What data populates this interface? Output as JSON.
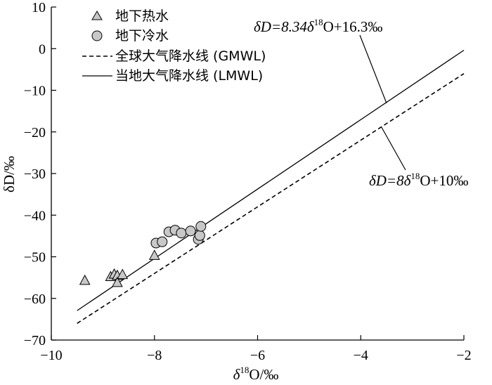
{
  "chart_data": {
    "type": "scatter",
    "title": "",
    "xlabel_symbol": "δ",
    "xlabel_sup": "18",
    "xlabel_rest": "O/‰",
    "ylabel": "δD/‰",
    "xlim": [
      -10,
      -2
    ],
    "ylim": [
      -70,
      10
    ],
    "x_ticks": [
      -10,
      -8,
      -6,
      -4,
      -2
    ],
    "y_ticks": [
      10,
      0,
      -10,
      -20,
      -30,
      -40,
      -50,
      -60,
      -70
    ],
    "x_tick_labels": [
      "−10",
      "−8",
      "−6",
      "−4",
      "−2"
    ],
    "y_tick_labels": [
      "10",
      "0",
      "−10",
      "−20",
      "−30",
      "−40",
      "−50",
      "−60",
      "−70"
    ],
    "legend_position": "top-left",
    "grid": false,
    "series": [
      {
        "name": "地下热水",
        "kind": "scatter",
        "marker": "triangle",
        "color": "#c8c8c8",
        "points": [
          [
            -9.35,
            -55.8
          ],
          [
            -8.85,
            -54.9
          ],
          [
            -8.78,
            -54.3
          ],
          [
            -8.72,
            -54.6
          ],
          [
            -8.72,
            -56.3
          ],
          [
            -8.62,
            -54.4
          ],
          [
            -8.0,
            -49.8
          ]
        ]
      },
      {
        "name": "地下冷水",
        "kind": "scatter",
        "marker": "circle",
        "color": "#c8c8c8",
        "points": [
          [
            -7.97,
            -46.7
          ],
          [
            -7.85,
            -46.4
          ],
          [
            -7.72,
            -44.0
          ],
          [
            -7.6,
            -43.6
          ],
          [
            -7.48,
            -44.3
          ],
          [
            -7.3,
            -43.8
          ],
          [
            -7.15,
            -45.8
          ],
          [
            -7.12,
            -44.9
          ],
          [
            -7.1,
            -42.7
          ]
        ]
      },
      {
        "name": "全球大气降水线 (GMWL)",
        "kind": "line",
        "dash": true,
        "equation": {
          "slope": 8,
          "intercept": 10
        },
        "x_range": [
          -9.5,
          -2
        ]
      },
      {
        "name": "当地大气降水线 (LMWL)",
        "kind": "line",
        "dash": false,
        "equation": {
          "slope": 8.34,
          "intercept": 16.3
        },
        "x_range": [
          -9.5,
          -2
        ]
      }
    ],
    "annotations": [
      {
        "id": "lmwl",
        "prefix": "δD=8.34",
        "delta": "δ",
        "sup": "18",
        "suffix": "O+16.3‰",
        "arrow_to": [
          -3.5,
          -13.1
        ]
      },
      {
        "id": "gmwl",
        "prefix": "δD=8",
        "delta": "δ",
        "sup": "18",
        "suffix": "O+10‰",
        "arrow_to": [
          -3.6,
          -18.8
        ]
      }
    ]
  }
}
